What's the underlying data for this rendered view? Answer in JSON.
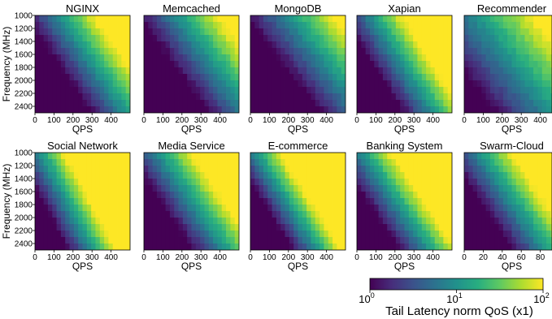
{
  "figure_title": "",
  "colormap": "viridis",
  "shared": {
    "xlabel": "QPS",
    "ylabel": "Frequency (MHz)",
    "yticks": [
      1000,
      1200,
      1400,
      1600,
      1800,
      2000,
      2200,
      2400
    ],
    "xticks_default": [
      0,
      100,
      200,
      300,
      400
    ],
    "xticks_swarm": [
      0,
      20,
      40,
      60,
      80
    ]
  },
  "colorbar": {
    "label": "Tail Latency norm QoS (x1)",
    "scale": "log",
    "range": [
      1,
      100
    ],
    "ticks": [
      {
        "base": "10",
        "exp": "0",
        "value": 1
      },
      {
        "base": "10",
        "exp": "1",
        "value": 10
      },
      {
        "base": "10",
        "exp": "2",
        "value": 100
      }
    ]
  },
  "chart_data": [
    {
      "type": "heatmap",
      "title": "NGINX",
      "xlabel": "QPS",
      "ylabel": "Frequency (MHz)",
      "xlim": [
        0,
        500
      ],
      "ylim": [
        1000,
        2500
      ],
      "xticks": [
        0,
        100,
        200,
        300,
        400
      ],
      "yticks": [
        1000,
        1200,
        1400,
        1600,
        1800,
        2000,
        2200,
        2400
      ],
      "value_scale": "log",
      "front": [
        0.25,
        0.95
      ],
      "steep": 1.4,
      "floor": 0.0
    },
    {
      "type": "heatmap",
      "title": "Memcached",
      "xlabel": "QPS",
      "ylabel": "",
      "xlim": [
        0,
        500
      ],
      "ylim": [
        1000,
        2500
      ],
      "xticks": [
        0,
        100,
        200,
        300,
        400
      ],
      "yticks": [
        1000,
        1200,
        1400,
        1600,
        1800,
        2000,
        2200,
        2400
      ],
      "value_scale": "log",
      "front": [
        0.35,
        1.1
      ],
      "steep": 1.2,
      "floor": 0.0
    },
    {
      "type": "heatmap",
      "title": "MongoDB",
      "xlabel": "QPS",
      "ylabel": "",
      "xlim": [
        0,
        500
      ],
      "ylim": [
        1000,
        2500
      ],
      "xticks": [
        0,
        100,
        200,
        300,
        400
      ],
      "yticks": [
        1000,
        1200,
        1400,
        1600,
        1800,
        2000,
        2200,
        2400
      ],
      "value_scale": "log",
      "front": [
        0.4,
        1.2
      ],
      "steep": 1.1,
      "floor": 0.0
    },
    {
      "type": "heatmap",
      "title": "Xapian",
      "xlabel": "QPS",
      "ylabel": "",
      "xlim": [
        0,
        500
      ],
      "ylim": [
        1000,
        2500
      ],
      "xticks": [
        0,
        100,
        200,
        300,
        400
      ],
      "yticks": [
        1000,
        1200,
        1400,
        1600,
        1800,
        2000,
        2200,
        2400
      ],
      "value_scale": "log",
      "front": [
        0.15,
        0.8
      ],
      "steep": 1.6,
      "floor": 0.0
    },
    {
      "type": "heatmap",
      "title": "Recommender",
      "xlabel": "QPS",
      "ylabel": "",
      "xlim": [
        0,
        500
      ],
      "ylim": [
        1000,
        2500
      ],
      "xticks": [
        0,
        100,
        200,
        300,
        400
      ],
      "yticks": [
        1000,
        1200,
        1400,
        1600,
        1800,
        2000,
        2200,
        2400
      ],
      "value_scale": "log",
      "front": [
        0.2,
        1.0
      ],
      "steep": 1.0,
      "floor": 0.15
    },
    {
      "type": "heatmap",
      "title": "Social Network",
      "xlabel": "QPS",
      "ylabel": "Frequency (MHz)",
      "xlim": [
        0,
        500
      ],
      "ylim": [
        1000,
        2500
      ],
      "xticks": [
        0,
        100,
        200,
        300,
        400
      ],
      "yticks": [
        1000,
        1200,
        1400,
        1600,
        1800,
        2000,
        2200,
        2400
      ],
      "value_scale": "log",
      "front": [
        0.05,
        0.6
      ],
      "steep": 2.0,
      "floor": 0.0
    },
    {
      "type": "heatmap",
      "title": "Media Service",
      "xlabel": "QPS",
      "ylabel": "",
      "xlim": [
        0,
        500
      ],
      "ylim": [
        1000,
        2500
      ],
      "xticks": [
        0,
        100,
        200,
        300,
        400
      ],
      "yticks": [
        1000,
        1200,
        1400,
        1600,
        1800,
        2000,
        2200,
        2400
      ],
      "value_scale": "log",
      "front": [
        0.15,
        0.85
      ],
      "steep": 1.5,
      "floor": 0.0
    },
    {
      "type": "heatmap",
      "title": "E-commerce",
      "xlabel": "QPS",
      "ylabel": "",
      "xlim": [
        0,
        500
      ],
      "ylim": [
        1000,
        2500
      ],
      "xticks": [
        0,
        100,
        200,
        300,
        400
      ],
      "yticks": [
        1000,
        1200,
        1400,
        1600,
        1800,
        2000,
        2200,
        2400
      ],
      "value_scale": "log",
      "front": [
        0.05,
        0.7
      ],
      "steep": 2.0,
      "floor": 0.0
    },
    {
      "type": "heatmap",
      "title": "Banking System",
      "xlabel": "QPS",
      "ylabel": "",
      "xlim": [
        0,
        500
      ],
      "ylim": [
        1000,
        2500
      ],
      "xticks": [
        0,
        100,
        200,
        300,
        400
      ],
      "yticks": [
        1000,
        1200,
        1400,
        1600,
        1800,
        2000,
        2200,
        2400
      ],
      "value_scale": "log",
      "front": [
        0.05,
        0.75
      ],
      "steep": 1.7,
      "floor": 0.0
    },
    {
      "type": "heatmap",
      "title": "Swarm-Cloud",
      "xlabel": "QPS",
      "ylabel": "",
      "xlim": [
        0,
        100
      ],
      "ylim": [
        1000,
        2500
      ],
      "xticks": [
        0,
        20,
        40,
        60,
        80
      ],
      "yticks": [
        1000,
        1200,
        1400,
        1600,
        1800,
        2000,
        2200,
        2400
      ],
      "value_scale": "log",
      "front": [
        0.15,
        0.85
      ],
      "steep": 1.5,
      "floor": 0.0
    }
  ]
}
